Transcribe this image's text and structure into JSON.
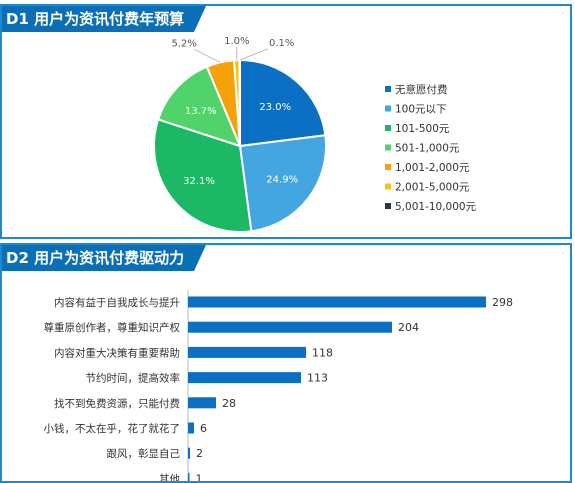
{
  "chart_data": [
    {
      "type": "pie",
      "title": "D1 用户为资讯付费年预算",
      "categories": [
        "无意愿付费",
        "100元以下",
        "101-500元",
        "501-1,000元",
        "1,001-2,000元",
        "2,001-5,000元",
        "5,001-10,000元"
      ],
      "values": [
        23.0,
        24.9,
        32.1,
        13.7,
        5.2,
        1.0,
        0.1
      ],
      "labels": [
        "23.0%",
        "24.9%",
        "32.1%",
        "13.7%",
        "5.2%",
        "1.0%",
        "0.1%"
      ],
      "colors": [
        "#0b6fc4",
        "#43a6e0",
        "#1cb866",
        "#4fd36a",
        "#f5a10a",
        "#f3c60a",
        "#2a3a4f"
      ],
      "legend_position": "right"
    },
    {
      "type": "bar",
      "orientation": "horizontal",
      "title": "D2 用户为资讯付费驱动力",
      "categories": [
        "内容有益于自我成长与提升",
        "尊重原创作者，尊重知识产权",
        "内容对重大决策有重要帮助",
        "节约时间，提高效率",
        "找不到免费资源，只能付费",
        "小钱，不太在乎，花了就花了",
        "跟风，彰显自己",
        "其他"
      ],
      "values": [
        298,
        204,
        118,
        113,
        28,
        6,
        2,
        1
      ],
      "value_labels": [
        "298",
        "204",
        "118",
        "113",
        "28",
        "6",
        "2",
        "1"
      ],
      "bar_color": "#0b6fc4",
      "xlim": [
        0,
        298
      ]
    }
  ]
}
